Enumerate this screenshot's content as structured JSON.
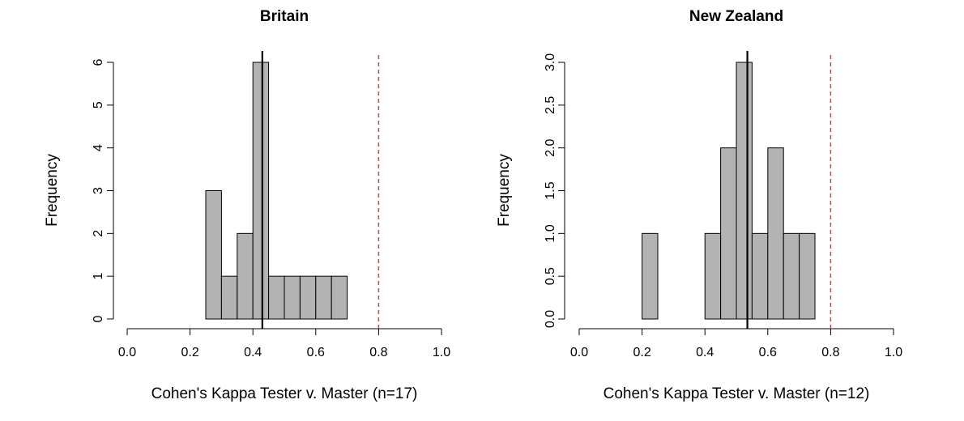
{
  "chart_data": [
    {
      "type": "bar",
      "title": "Britain",
      "xlabel": "Cohen's Kappa Tester v. Master (n=17)",
      "ylabel": "Frequency",
      "xlim": [
        0.0,
        1.0
      ],
      "ylim": [
        0,
        6
      ],
      "x_ticks": [
        "0.0",
        "0.2",
        "0.4",
        "0.6",
        "0.8",
        "1.0"
      ],
      "y_ticks": [
        "0",
        "1",
        "2",
        "3",
        "4",
        "5",
        "6"
      ],
      "bins": [
        {
          "start": 0.25,
          "end": 0.3,
          "count": 3
        },
        {
          "start": 0.3,
          "end": 0.35,
          "count": 1
        },
        {
          "start": 0.35,
          "end": 0.4,
          "count": 2
        },
        {
          "start": 0.4,
          "end": 0.45,
          "count": 6
        },
        {
          "start": 0.45,
          "end": 0.5,
          "count": 1
        },
        {
          "start": 0.5,
          "end": 0.55,
          "count": 1
        },
        {
          "start": 0.55,
          "end": 0.6,
          "count": 1
        },
        {
          "start": 0.6,
          "end": 0.65,
          "count": 1
        },
        {
          "start": 0.65,
          "end": 0.7,
          "count": 1
        }
      ],
      "mean_line": 0.43,
      "reference_line": 0.8,
      "colors": {
        "bar": "#b3b3b3",
        "mean_line": "#000000",
        "reference_line": "#e8393a"
      }
    },
    {
      "type": "bar",
      "title": "New Zealand",
      "xlabel": "Cohen's Kappa Tester v. Master (n=12)",
      "ylabel": "Frequency",
      "xlim": [
        0.0,
        1.0
      ],
      "ylim": [
        0,
        3
      ],
      "x_ticks": [
        "0.0",
        "0.2",
        "0.4",
        "0.6",
        "0.8",
        "1.0"
      ],
      "y_ticks": [
        "0.0",
        "0.5",
        "1.0",
        "1.5",
        "2.0",
        "2.5",
        "3.0"
      ],
      "bins": [
        {
          "start": 0.2,
          "end": 0.25,
          "count": 1
        },
        {
          "start": 0.25,
          "end": 0.3,
          "count": 0
        },
        {
          "start": 0.3,
          "end": 0.35,
          "count": 0
        },
        {
          "start": 0.35,
          "end": 0.4,
          "count": 0
        },
        {
          "start": 0.4,
          "end": 0.45,
          "count": 1
        },
        {
          "start": 0.45,
          "end": 0.5,
          "count": 2
        },
        {
          "start": 0.5,
          "end": 0.55,
          "count": 3
        },
        {
          "start": 0.55,
          "end": 0.6,
          "count": 1
        },
        {
          "start": 0.6,
          "end": 0.65,
          "count": 2
        },
        {
          "start": 0.65,
          "end": 0.7,
          "count": 1
        },
        {
          "start": 0.7,
          "end": 0.75,
          "count": 1
        }
      ],
      "mean_line": 0.535,
      "reference_line": 0.8,
      "colors": {
        "bar": "#b3b3b3",
        "mean_line": "#000000",
        "reference_line": "#e8393a"
      }
    }
  ]
}
